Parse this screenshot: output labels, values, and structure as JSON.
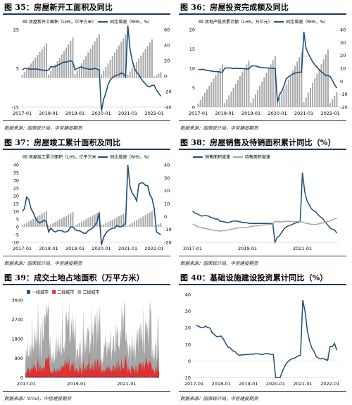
{
  "charts": [
    {
      "id": "c35",
      "title": "图 35：房屋新开工面积及同比",
      "source": "数据来源：国家统计局，中信建投期货",
      "chart_data": {
        "type": "bar+line",
        "legend": {
          "position": "top",
          "entries": [
            "房屋新开工面积（LHS，亿平方米）",
            "同比增速（RHS，%）"
          ]
        },
        "x_ticks": [
          "2017-01",
          "2018-01",
          "2019-01",
          "2020-01",
          "2021-01",
          "2022-01"
        ],
        "y_left": {
          "range": [
            -15,
            25
          ],
          "ticks": [
            "25",
            "5",
            "-15"
          ]
        },
        "y_right": {
          "range": [
            -40,
            60
          ],
          "ticks": [
            "60",
            "40",
            "20",
            "0",
            "-20",
            "-40"
          ]
        },
        "bars": {
          "series": "房屋新开工面积",
          "yearly_peak": [
            17.9,
            20.9,
            22.7,
            22.4,
            19.9,
            3.0
          ],
          "start_year": 2017,
          "end_month_last_year": 4
        },
        "line": {
          "series": "同比增速",
          "x_start": "2017-01",
          "values": [
            8,
            10,
            10,
            9,
            9,
            9,
            9,
            9,
            8,
            8,
            7,
            7,
            8,
            12,
            12,
            12,
            14,
            15,
            17,
            18,
            18,
            19,
            20,
            18,
            8,
            10,
            11,
            12,
            10,
            10,
            9,
            9,
            9,
            10,
            9,
            8,
            -45,
            -30,
            -22,
            -11,
            -5,
            -2,
            0,
            1,
            2,
            4,
            3,
            -1,
            65,
            35,
            20,
            10,
            5,
            2,
            -3,
            -7,
            -10,
            -13,
            -14,
            -12,
            -12,
            -18,
            -22,
            -26
          ]
        }
      }
    },
    {
      "id": "c36",
      "title": "图 36：房屋投资完成额及同比",
      "source": "数据来源：国家统计局，中信建投期货",
      "chart_data": {
        "type": "bar+line",
        "legend": {
          "position": "top",
          "entries": [
            "房地产投资累计额（LHS，万亿元）",
            "同比增速（RHS，%）"
          ]
        },
        "x_ticks": [
          "2017-01",
          "2018-01",
          "2019-01",
          "2020-01",
          "2021-01",
          "2022-01"
        ],
        "y_left": {
          "range": [
            0,
            20
          ],
          "ticks": [
            "20",
            "15",
            "10",
            "5",
            "0"
          ]
        },
        "y_right": {
          "range": [
            -20,
            40
          ],
          "ticks": [
            "40",
            "30",
            "20",
            "10",
            "0",
            "-10",
            "-20"
          ]
        },
        "bars": {
          "series": "房地产投资累计额",
          "yearly_peak": [
            11.0,
            12.0,
            13.2,
            14.1,
            14.8,
            3.9
          ],
          "start_year": 2017,
          "end_month_last_year": 4
        },
        "line": {
          "series": "同比增速",
          "x_start": "2017-01",
          "values": [
            8.9,
            9.1,
            9.3,
            8.8,
            8.5,
            8.1,
            7.9,
            7.6,
            7.5,
            7.5,
            7.0,
            7.0,
            9.9,
            10.4,
            10.3,
            10.2,
            9.7,
            10.1,
            9.9,
            9.9,
            9.9,
            9.7,
            9.5,
            9.5,
            11.6,
            11.9,
            11.9,
            11.2,
            10.9,
            10.5,
            10.5,
            10.3,
            10.2,
            10.0,
            9.9,
            9.9,
            -16.3,
            -10.3,
            -7.7,
            -3.3,
            1.9,
            3.4,
            4.6,
            5.6,
            6.3,
            6.8,
            7.0,
            7.0,
            38.3,
            25.6,
            21.6,
            18.3,
            15.0,
            12.7,
            10.9,
            8.9,
            7.2,
            6.1,
            4.4,
            4.4,
            3.7,
            0.7,
            -2.7,
            -5.3
          ]
        }
      }
    },
    {
      "id": "c37",
      "title": "图 37：房屋竣工累计面积及同比",
      "source": "数据来源：国家统计局，中信建投期货",
      "chart_data": {
        "type": "bar+line",
        "legend": {
          "position": "top",
          "entries": [
            "房屋竣工累计面积（LHS，亿平方米",
            "同比增速（RHS，%）"
          ]
        },
        "x_ticks": [
          "2017-01",
          "2018-01",
          "2019-01",
          "2020-01",
          "2021-01",
          "2022-01"
        ],
        "y_left": {
          "range": [
            -10,
            40
          ],
          "ticks": [
            "40",
            "35",
            "30",
            "25",
            "20",
            "15",
            "10",
            "5",
            "0",
            "-5",
            "-10"
          ]
        },
        "y_right": {
          "range": [
            -20,
            40
          ],
          "ticks": [
            "40",
            "30",
            "20",
            "10",
            "0",
            "-10",
            "-20"
          ]
        },
        "bars": {
          "series": "房屋竣工累计面积",
          "yearly_peak": [
            10.1,
            9.4,
            9.6,
            9.1,
            10.1,
            2.3
          ],
          "start_year": 2017,
          "end_month_last_year": 4
        },
        "line": {
          "series": "同比增速",
          "x_start": "2017-01",
          "values": [
            4,
            6,
            15,
            13,
            6,
            3,
            -1,
            -4,
            -5,
            -4,
            -3,
            -4,
            -12,
            -9,
            -11,
            -12,
            -11,
            -11,
            -11,
            -12,
            -12,
            -11,
            -8,
            -8,
            -10,
            -11,
            -11,
            -12,
            -13,
            -13,
            -11,
            -10,
            -9,
            -7,
            -4,
            3,
            -22,
            -16,
            -13,
            -11,
            -10,
            -9,
            -9,
            -7,
            -8,
            -8,
            -7,
            -5,
            40,
            23,
            18,
            16,
            12,
            25,
            26,
            26,
            24,
            24,
            17,
            14,
            6,
            -12,
            -13,
            -14
          ]
        }
      }
    },
    {
      "id": "c38",
      "title": "图 38：房屋销售及待销面积累计同比（%）",
      "source": "数据来源：国家统计局，中信建投期货",
      "chart_data": {
        "type": "line",
        "legend": {
          "position": "top",
          "entries": [
            "销售面积增速",
            "待售面积增速"
          ]
        },
        "x_ticks": [
          "2017-01",
          "2019-01",
          "2021-01"
        ],
        "y_left": {
          "range": [
            -40,
            120
          ],
          "ticks": []
        },
        "series": [
          {
            "name": "销售面积增速",
            "x_start": "2017-01",
            "values": [
              25,
              20,
              19,
              16,
              14,
              15,
              15,
              14,
              11,
              10,
              8,
              8,
              3,
              3,
              2,
              1,
              1,
              3,
              4,
              4,
              3,
              2,
              1,
              1,
              -0.1,
              -1,
              -1,
              -1,
              -1,
              -1,
              -1,
              -1,
              -1,
              -1,
              -1,
              -1,
              -40,
              -30,
              -26,
              -19,
              -12,
              -8,
              -6,
              -4,
              -2,
              0,
              1,
              3,
              104,
              64,
              46,
              37,
              29,
              25,
              22,
              16,
              12,
              8,
              2,
              -4,
              -10,
              -13,
              -14,
              -21
            ]
          },
          {
            "name": "待售面积增速",
            "x_start": "2017-01",
            "values": [
              -2,
              -5,
              -7,
              -9,
              -10,
              -11,
              -12,
              -13,
              -14,
              -15,
              -16,
              -16,
              -17,
              -16,
              -16,
              -15,
              -14,
              -13,
              -12,
              -11,
              -10,
              -10,
              -10,
              -10,
              -9,
              -8,
              -7,
              -6,
              -6,
              -5,
              -5,
              -4,
              -4,
              -3,
              -3,
              -2,
              3,
              3,
              2,
              2,
              3,
              3,
              3,
              3,
              3,
              3,
              3,
              3,
              2,
              0,
              -1,
              -2,
              -3,
              -3,
              -3,
              -2,
              -1,
              0,
              2,
              3,
              4,
              6,
              8,
              10
            ]
          }
        ]
      }
    },
    {
      "id": "c39",
      "title": "图 39：成交土地占地面积（万平方米）",
      "source": "数据来源：Wind，中信建投期货",
      "chart_data": {
        "type": "area",
        "legend": {
          "position": "top",
          "entries": [
            "一线城市",
            "二线城市",
            "三线城市"
          ]
        },
        "x_ticks": [
          "2017-01",
          "2019-01",
          "2021-01"
        ],
        "y_left": {
          "range": [
            0,
            3600
          ],
          "ticks": [
            "3600",
            "2700",
            "1800",
            "900",
            "0"
          ]
        },
        "series": [
          {
            "name": "一线城市",
            "weekly_average": 40,
            "color": "#1f4e79"
          },
          {
            "name": "二线城市",
            "weekly_average": 450,
            "color": "#e03030"
          },
          {
            "name": "三线城市",
            "weekly_average": 1300,
            "color": "#a6a6a6"
          }
        ],
        "frequency": "weekly",
        "period": [
          "2017-01",
          "2022-04"
        ]
      }
    },
    {
      "id": "c40",
      "title": "图 40：基础设施建设投资累计同比（%）",
      "source": "数据来源：国家统计局，中信建投期货",
      "chart_data": {
        "type": "line",
        "legend": {
          "position": "none",
          "entries": []
        },
        "x_ticks": [
          "2017-01",
          "2018-01",
          "2019-01",
          "2020-01",
          "2021-01",
          "2022-01"
        ],
        "y_left": {
          "range": [
            -10,
            40
          ],
          "ticks": [
            "40",
            "30",
            "20",
            "10",
            "0",
            "-10"
          ]
        },
        "series": [
          {
            "name": "",
            "x_start": "2017-01",
            "values": [
              null,
              21.3,
              20.9,
              20.0,
              20.0,
              20.9,
              20.1,
              19.8,
              16.9,
              15.9,
              14.6,
              14.8,
              14.9,
              13.0,
              10.4,
              8.2,
              7.8,
              6.2,
              5.7,
              4.2,
              3.3,
              3.7,
              3.7,
              3.8,
              3.8,
              4.1,
              4.0,
              4.3,
              4.3,
              4.1,
              3.8,
              4.2,
              4.5,
              4.2,
              4.0,
              3.8,
              -30.3,
              -19.7,
              -11.8,
              -6.3,
              -3.3,
              -1.0,
              0.2,
              1.2,
              1.4,
              2.2,
              3.1,
              3.4,
              36.6,
              29.7,
              18.4,
              11.8,
              7.8,
              5.5,
              2.5,
              1.6,
              1.2,
              1.5,
              0.8,
              0.4,
              8.6,
              8.5,
              10.5,
              6.5
            ]
          }
        ]
      }
    }
  ]
}
